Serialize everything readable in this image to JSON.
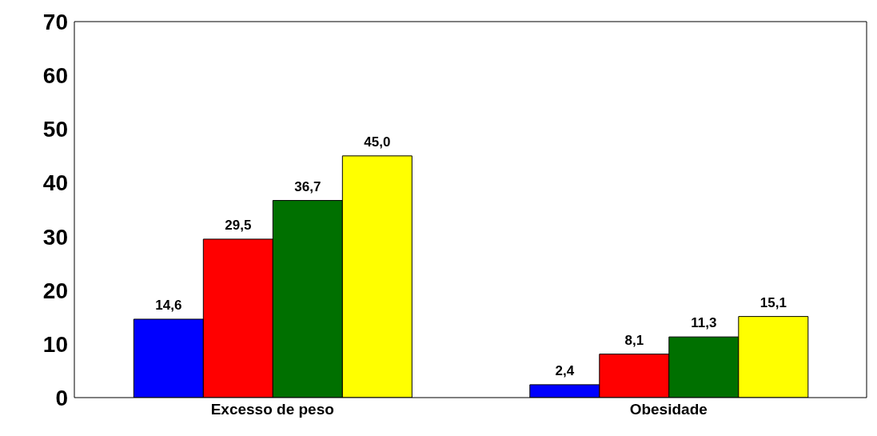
{
  "chart_data": {
    "type": "bar",
    "categories": [
      "Excesso de peso",
      "Obesidade"
    ],
    "series": [
      {
        "color": "#0000ff",
        "values": [
          14.6,
          2.4
        ],
        "value_labels": [
          "14,6",
          "2,4"
        ]
      },
      {
        "color": "#ff0000",
        "values": [
          29.5,
          8.1
        ],
        "value_labels": [
          "29,5",
          "8,1"
        ]
      },
      {
        "color": "#007000",
        "values": [
          36.7,
          11.3
        ],
        "value_labels": [
          "36,7",
          "11,3"
        ]
      },
      {
        "color": "#ffff00",
        "values": [
          45.0,
          15.1
        ],
        "value_labels": [
          "45,0",
          "15,1"
        ]
      }
    ],
    "ylim": [
      0,
      70
    ],
    "yticks": [
      0,
      10,
      20,
      30,
      40,
      50,
      60,
      70
    ],
    "grid": false,
    "legend": false
  }
}
